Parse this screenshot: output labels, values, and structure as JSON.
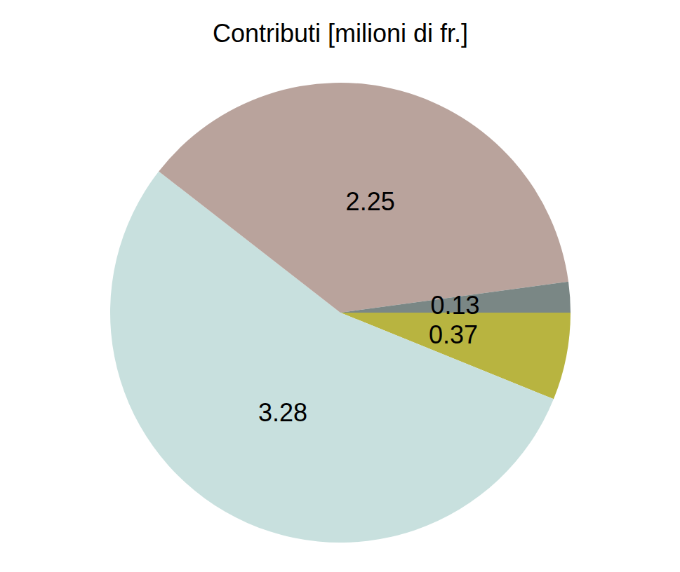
{
  "chart_data": {
    "type": "pie",
    "title": "Contributi [milioni di fr.]",
    "values": [
      0.37,
      3.28,
      2.25,
      0.13
    ],
    "colors": [
      "#b8b440",
      "#c8e0de",
      "#b9a39c",
      "#7a8785"
    ],
    "data_labels": true
  }
}
